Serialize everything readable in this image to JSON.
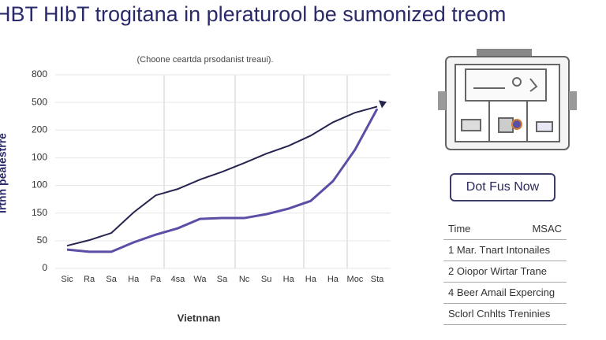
{
  "chart_data": {
    "type": "line",
    "title": "HBT HIbT trogitana in pleraturool be sumonized treom",
    "subtitle": "(Choone ceartda prsodanist treaui).",
    "y_label": "Irtnn pealestrre",
    "x_label": "Vietnnan",
    "categories": [
      "Sic",
      "Ra",
      "Sa",
      "Ha",
      "Pa",
      "4sa",
      "Wa",
      "Sa",
      "Nc",
      "Su",
      "Ha",
      "Ha",
      "Ha",
      "Moc",
      "Sta"
    ],
    "series": [
      {
        "color": "#24244f",
        "values": [
          0.82,
          1.02,
          1.28,
          2.02,
          2.64,
          2.87,
          3.21,
          3.49,
          3.81,
          4.15,
          4.43,
          4.8,
          5.28,
          5.63,
          5.85
        ]
      },
      {
        "color": "#5a4ea6",
        "values": [
          0.68,
          0.6,
          0.6,
          0.94,
          1.22,
          1.45,
          1.79,
          1.82,
          1.82,
          1.96,
          2.16,
          2.44,
          3.15,
          4.29,
          5.77
        ]
      }
    ],
    "ylim": [
      0,
      7
    ],
    "yticks": [
      0,
      {
        "value": 1,
        "label": "50"
      },
      {
        "value": 2,
        "label": "150"
      },
      {
        "value": 3,
        "label": "100"
      },
      {
        "value": 4,
        "label": "100"
      },
      {
        "value": 5,
        "label": "200"
      },
      {
        "value": 6,
        "label": "500"
      },
      {
        "value": 7,
        "label": "800"
      }
    ],
    "grid": true
  },
  "panel": {
    "button": "Dot Fus Now",
    "table": {
      "header": [
        "Time",
        "MSAC"
      ],
      "rows": [
        "1 Mar. Tnart Intonailes",
        "2 Oiopor Wirtar Trane",
        "4 Beer Amail Expercing",
        "Sclorl Cnhlts Treninies"
      ]
    }
  }
}
